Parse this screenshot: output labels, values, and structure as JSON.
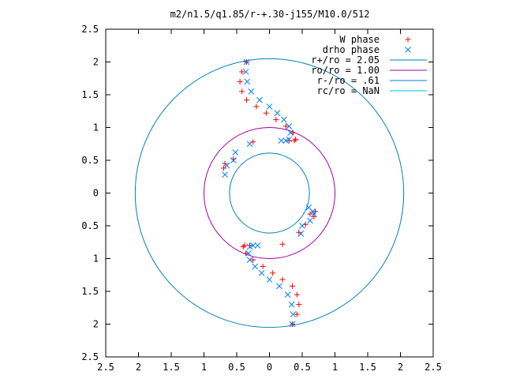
{
  "chart_data": {
    "type": "scatter",
    "title": "m2/n1.5/q1.85/r-+.30-j155/M10.0/512",
    "xlabel": "",
    "ylabel": "",
    "xlim": [
      -2.5,
      2.5
    ],
    "ylim": [
      -2.5,
      2.5
    ],
    "x_ticks": [
      "2.5",
      "2",
      "1.5",
      "1",
      "0.5",
      "0",
      "0.5",
      "1",
      "1.5",
      "2",
      "2.5"
    ],
    "y_ticks": [
      "2.5",
      "2",
      "1.5",
      "1",
      "0.5",
      "0",
      "0.5",
      "1",
      "1.5",
      "2",
      "2.5"
    ],
    "grid": false,
    "legend_position": "top-right",
    "series": [
      {
        "name": "W phase",
        "marker": "plus",
        "color": "#ff0000",
        "x": [
          -0.35,
          -0.42,
          -0.45,
          -0.42,
          -0.35,
          -0.2,
          -0.05,
          0.1,
          0.25,
          0.36,
          0.4,
          0.38,
          0.3,
          -0.25,
          -0.55,
          -0.68,
          -0.7,
          0.62,
          0.7,
          0.68,
          0.55,
          0.45,
          0.2,
          0.35,
          0.42,
          0.45,
          0.42,
          0.35,
          0.2,
          0.05,
          -0.1,
          -0.25,
          -0.36,
          -0.4,
          -0.38,
          -0.3
        ],
        "y": [
          2.0,
          1.85,
          1.7,
          1.55,
          1.42,
          1.32,
          1.22,
          1.12,
          1.02,
          0.92,
          0.82,
          0.8,
          0.8,
          0.78,
          0.52,
          0.45,
          0.38,
          -0.32,
          -0.28,
          -0.36,
          -0.48,
          -0.6,
          -0.78,
          -2.0,
          -1.85,
          -1.7,
          -1.55,
          -1.42,
          -1.32,
          -1.22,
          -1.12,
          -1.02,
          -0.92,
          -0.82,
          -0.8,
          -0.8
        ]
      },
      {
        "name": "drho phase",
        "marker": "cross",
        "color": "#0080ff",
        "x": [
          -0.35,
          -0.36,
          -0.34,
          -0.28,
          -0.15,
          0.0,
          0.12,
          0.22,
          0.3,
          0.32,
          0.3,
          0.25,
          0.18,
          -0.3,
          -0.52,
          -0.55,
          -0.65,
          -0.68,
          0.6,
          0.66,
          0.68,
          0.62,
          0.5,
          0.48,
          0.35,
          0.36,
          0.34,
          0.28,
          0.15,
          0.0,
          -0.12,
          -0.22,
          -0.3,
          -0.32,
          -0.3,
          -0.25,
          -0.18
        ],
        "y": [
          2.0,
          1.85,
          1.7,
          1.55,
          1.42,
          1.32,
          1.22,
          1.12,
          1.02,
          0.92,
          0.82,
          0.8,
          0.8,
          0.75,
          0.62,
          0.5,
          0.42,
          0.28,
          -0.22,
          -0.28,
          -0.32,
          -0.42,
          -0.5,
          -0.62,
          -2.0,
          -1.85,
          -1.7,
          -1.55,
          -1.42,
          -1.32,
          -1.22,
          -1.12,
          -1.02,
          -0.92,
          -0.82,
          -0.8,
          -0.8
        ]
      },
      {
        "name": "r+/ro = 2.05",
        "type": "circle",
        "radius": 2.05,
        "color": "#0080c0"
      },
      {
        "name": "ro/ro = 1.00",
        "type": "circle",
        "radius": 1.0,
        "color": "#a000a0"
      },
      {
        "name": "r-/ro = .61",
        "type": "circle",
        "radius": 0.61,
        "color": "#0080c0"
      },
      {
        "name": "rc/ro = NaN",
        "type": "circle",
        "radius": null,
        "color": "#00c0e0"
      }
    ]
  }
}
